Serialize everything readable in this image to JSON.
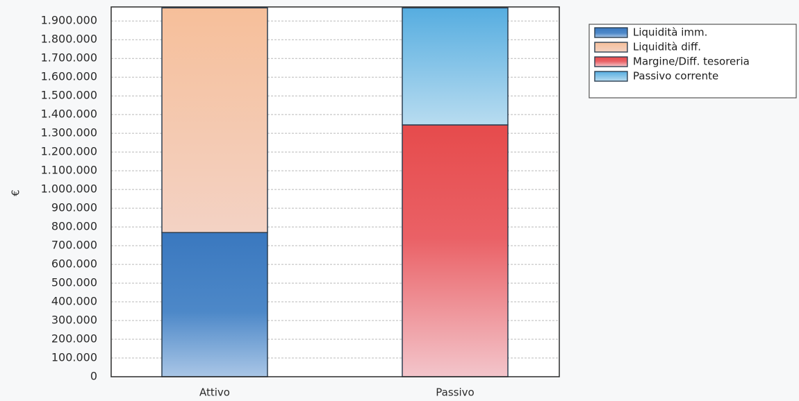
{
  "chart_data": {
    "type": "bar",
    "stacked": true,
    "title": "",
    "xlabel": "",
    "ylabel": "€",
    "ylim": [
      0,
      1975000
    ],
    "y_ticks": [
      0,
      100000,
      200000,
      300000,
      400000,
      500000,
      600000,
      700000,
      800000,
      900000,
      1000000,
      1100000,
      1200000,
      1300000,
      1400000,
      1500000,
      1600000,
      1700000,
      1800000,
      1900000
    ],
    "y_tick_labels": [
      "0",
      "100.000",
      "200.000",
      "300.000",
      "400.000",
      "500.000",
      "600.000",
      "700.000",
      "800.000",
      "900.000",
      "1.000.000",
      "1.100.000",
      "1.200.000",
      "1.300.000",
      "1.400.000",
      "1.500.000",
      "1.600.000",
      "1.700.000",
      "1.800.000",
      "1.900.000"
    ],
    "grid": true,
    "legend_position": "top-right",
    "categories": [
      "Attivo",
      "Passivo"
    ],
    "series": [
      {
        "name": "Liquidità imm.",
        "values": [
          770000,
          0
        ],
        "color": "#3f7fc0"
      },
      {
        "name": "Liquidità diff.",
        "values": [
          1200000,
          0
        ],
        "color": "#f3c6ac"
      },
      {
        "name": "Margine/Diff. tesoreria",
        "values": [
          0,
          1345000
        ],
        "color": "#e8585a"
      },
      {
        "name": "Passivo corrente",
        "values": [
          0,
          625000
        ],
        "color": "#6ab6e0"
      }
    ]
  }
}
